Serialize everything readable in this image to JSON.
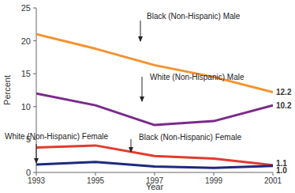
{
  "chart_data": {
    "type": "line",
    "x_label": "Year",
    "y_label": "Percent",
    "x": [
      1993,
      1995,
      1997,
      1999,
      2001
    ],
    "xlim": [
      1993,
      2001
    ],
    "xticks": [
      1993,
      1995,
      1997,
      1999,
      2001
    ],
    "ylim": [
      0,
      25
    ],
    "yticks": [
      0,
      5,
      10,
      15,
      20,
      25
    ],
    "grid": false,
    "series": [
      {
        "name": "Black (Non-Hispanic) Male",
        "color": "#f5922f",
        "values": [
          21.0,
          18.8,
          16.3,
          14.5,
          12.2
        ],
        "value_labels": [
          null,
          null,
          null,
          null,
          "12.2"
        ]
      },
      {
        "name": "White (Non-Hispanic) Male",
        "color": "#7a2a8a",
        "values": [
          12.0,
          10.2,
          7.2,
          7.8,
          10.2
        ],
        "value_labels": [
          null,
          null,
          null,
          null,
          "10.2"
        ]
      },
      {
        "name": "Black (Non-Hispanic) Female",
        "color": "#e23b2e",
        "values": [
          3.8,
          4.1,
          2.5,
          2.1,
          1.1
        ],
        "value_labels": [
          null,
          null,
          null,
          null,
          "1.1"
        ]
      },
      {
        "name": "White (Non-Hispanic) Female",
        "color": "#1c2a7c",
        "values": [
          1.2,
          1.6,
          0.9,
          0.7,
          1.0
        ],
        "value_labels": [
          null,
          null,
          null,
          null,
          "1.0"
        ]
      }
    ]
  }
}
